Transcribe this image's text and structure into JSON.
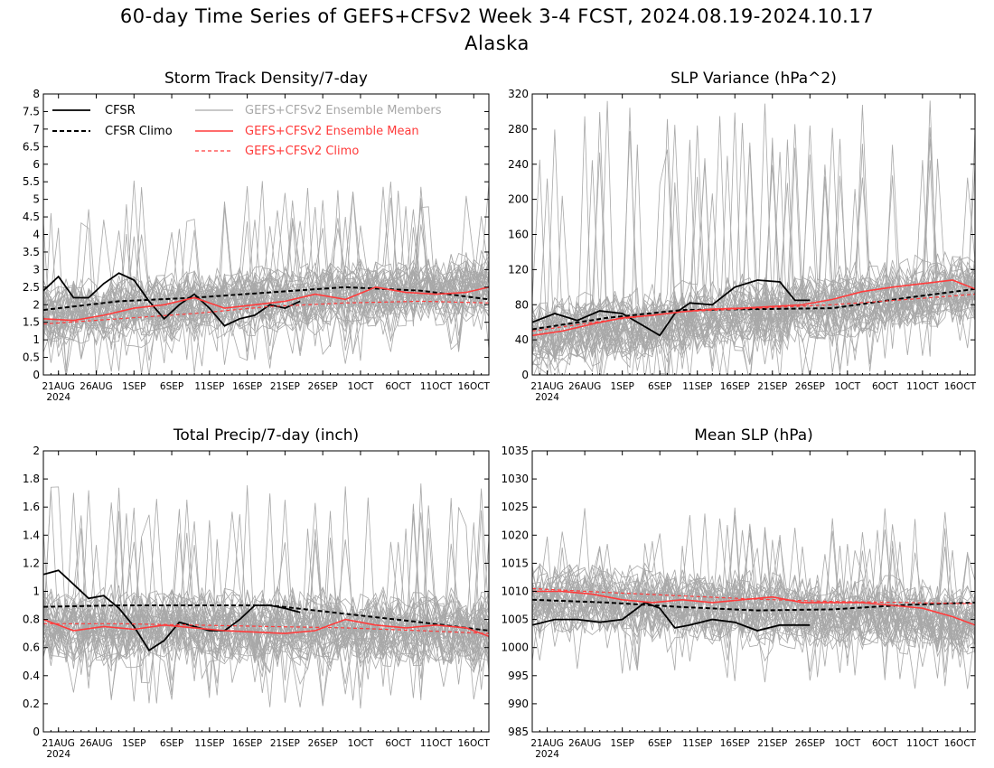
{
  "title": "60-day Time Series of GEFS+CFSv2 Week 3-4 FCST, 2024.08.19-2024.10.17",
  "subtitle": "Alaska",
  "x_axis": {
    "labels": [
      "21AUG",
      "26AUG",
      "1SEP",
      "6SEP",
      "11SEP",
      "16SEP",
      "21SEP",
      "26SEP",
      "1OCT",
      "6OCT",
      "11OCT",
      "16OCT"
    ],
    "year_label": "2024",
    "ndays": 60,
    "first_label_day": 2
  },
  "legend": {
    "cfsr": "CFSR",
    "cfsr_climo": "CFSR Climo",
    "members": "GEFS+CFSv2 Ensemble Members",
    "ens_mean": "GEFS+CFSv2 Ensemble Mean",
    "gefs_climo": "GEFS+CFSv2 Climo"
  },
  "colors": {
    "cfsr": "#000000",
    "members": "#a8a8a8",
    "ens_mean": "#ff3b3b",
    "legend_members_text": "#a8a8a8",
    "legend_red_text": "#ff3b3b"
  },
  "chart_data": [
    {
      "type": "line",
      "title": "Storm Track Density/7-day",
      "ylim": [
        0,
        8
      ],
      "yticks": [
        "0",
        "0.5",
        "1",
        "1.5",
        "2",
        "2.5",
        "3",
        "3.5",
        "4",
        "4.5",
        "5",
        "5.5",
        "6",
        "6.5",
        "7",
        "7.5",
        "8"
      ],
      "members_spread": {
        "count": 40,
        "center_start": 1.7,
        "center_end": 2.5,
        "halfwidth": 0.9,
        "spike_max": 5.6
      },
      "series": [
        {
          "name": "CFSR",
          "style": "cfsr",
          "x": [
            0,
            2,
            4,
            6,
            8,
            10,
            12,
            14,
            16,
            18,
            20,
            22,
            24,
            26,
            28,
            30,
            32,
            34
          ],
          "values": [
            2.4,
            2.8,
            2.2,
            2.2,
            2.6,
            2.9,
            2.7,
            2.1,
            1.6,
            2.0,
            2.3,
            1.9,
            1.4,
            1.6,
            1.7,
            2.0,
            1.9,
            2.1
          ]
        },
        {
          "name": "CFSR Climo",
          "style": "cfsr_climo",
          "x": [
            0,
            10,
            20,
            30,
            40,
            50,
            59
          ],
          "values": [
            1.85,
            2.1,
            2.2,
            2.35,
            2.5,
            2.4,
            2.15
          ]
        },
        {
          "name": "GEFS+CFSv2 Ensemble Mean",
          "style": "ens_mean",
          "x": [
            0,
            4,
            8,
            12,
            16,
            20,
            24,
            28,
            32,
            36,
            40,
            44,
            48,
            52,
            56,
            59
          ],
          "values": [
            1.6,
            1.55,
            1.7,
            1.9,
            2.0,
            2.2,
            1.9,
            2.0,
            2.1,
            2.3,
            2.15,
            2.5,
            2.35,
            2.3,
            2.35,
            2.5
          ]
        },
        {
          "name": "GEFS+CFSv2 Climo",
          "style": "gefs_climo",
          "x": [
            0,
            10,
            20,
            30,
            40,
            50,
            59
          ],
          "values": [
            1.45,
            1.6,
            1.75,
            1.95,
            2.05,
            2.1,
            2.05
          ]
        }
      ]
    },
    {
      "type": "line",
      "title": "SLP Variance (hPa^2)",
      "ylim": [
        0,
        320
      ],
      "yticks": [
        "0",
        "40",
        "80",
        "120",
        "160",
        "200",
        "240",
        "280",
        "320"
      ],
      "members_spread": {
        "count": 40,
        "center_start": 45,
        "center_end": 100,
        "halfwidth": 38,
        "spike_max": 315
      },
      "series": [
        {
          "name": "CFSR",
          "style": "cfsr",
          "x": [
            0,
            3,
            6,
            9,
            12,
            15,
            17,
            19,
            21,
            24,
            27,
            30,
            33,
            35,
            37
          ],
          "values": [
            60,
            70,
            62,
            73,
            70,
            55,
            45,
            70,
            82,
            80,
            100,
            108,
            106,
            85,
            85
          ]
        },
        {
          "name": "CFSR Climo",
          "style": "cfsr_climo",
          "x": [
            0,
            10,
            20,
            30,
            40,
            50,
            59
          ],
          "values": [
            52,
            65,
            74,
            75,
            76,
            88,
            98
          ]
        },
        {
          "name": "GEFS+CFSv2 Ensemble Mean",
          "style": "ens_mean",
          "x": [
            0,
            4,
            8,
            12,
            16,
            20,
            24,
            28,
            32,
            36,
            40,
            44,
            48,
            52,
            56,
            59
          ],
          "values": [
            45,
            50,
            58,
            65,
            68,
            72,
            75,
            76,
            78,
            80,
            86,
            95,
            100,
            104,
            108,
            98
          ]
        },
        {
          "name": "GEFS+CFSv2 Climo",
          "style": "gefs_climo",
          "x": [
            0,
            10,
            20,
            30,
            40,
            50,
            59
          ],
          "values": [
            50,
            62,
            72,
            76,
            80,
            86,
            92
          ]
        }
      ]
    },
    {
      "type": "line",
      "title": "Total Precip/7-day (inch)",
      "ylim": [
        0,
        2
      ],
      "yticks": [
        "0",
        "0.2",
        "0.4",
        "0.6",
        "0.8",
        "1",
        "1.2",
        "1.4",
        "1.6",
        "1.8",
        "2"
      ],
      "members_spread": {
        "count": 40,
        "center_start": 0.77,
        "center_end": 0.72,
        "halfwidth": 0.26,
        "spike_max": 1.78
      },
      "series": [
        {
          "name": "CFSR",
          "style": "cfsr",
          "x": [
            0,
            2,
            4,
            6,
            8,
            10,
            12,
            14,
            16,
            18,
            20,
            22,
            24,
            26,
            28,
            30,
            32,
            34
          ],
          "values": [
            1.12,
            1.15,
            1.05,
            0.95,
            0.97,
            0.88,
            0.75,
            0.58,
            0.65,
            0.78,
            0.75,
            0.72,
            0.72,
            0.8,
            0.9,
            0.9,
            0.88,
            0.85
          ]
        },
        {
          "name": "CFSR Climo",
          "style": "cfsr_climo",
          "x": [
            0,
            10,
            20,
            30,
            40,
            50,
            59
          ],
          "values": [
            0.89,
            0.9,
            0.9,
            0.9,
            0.84,
            0.78,
            0.72
          ]
        },
        {
          "name": "GEFS+CFSv2 Ensemble Mean",
          "style": "ens_mean",
          "x": [
            0,
            4,
            8,
            12,
            16,
            20,
            24,
            28,
            32,
            36,
            40,
            44,
            48,
            52,
            56,
            59
          ],
          "values": [
            0.8,
            0.72,
            0.75,
            0.73,
            0.76,
            0.74,
            0.72,
            0.71,
            0.7,
            0.72,
            0.8,
            0.76,
            0.74,
            0.76,
            0.74,
            0.68
          ]
        },
        {
          "name": "GEFS+CFSv2 Climo",
          "style": "gefs_climo",
          "x": [
            0,
            10,
            20,
            30,
            40,
            50,
            59
          ],
          "values": [
            0.77,
            0.77,
            0.76,
            0.75,
            0.74,
            0.72,
            0.7
          ]
        }
      ]
    },
    {
      "type": "line",
      "title": "Mean SLP (hPa)",
      "ylim": [
        985,
        1035
      ],
      "yticks": [
        "985",
        "990",
        "995",
        "1000",
        "1005",
        "1010",
        "1015",
        "1020",
        "1025",
        "1030",
        "1035"
      ],
      "members_spread": {
        "count": 40,
        "center_start": 1009,
        "center_end": 1005,
        "halfwidth": 6,
        "spike_max": 1025
      },
      "series": [
        {
          "name": "CFSR",
          "style": "cfsr",
          "x": [
            0,
            3,
            6,
            9,
            12,
            15,
            17,
            19,
            21,
            24,
            27,
            30,
            33,
            35,
            37
          ],
          "values": [
            1004,
            1005,
            1005,
            1004.5,
            1005,
            1008,
            1007,
            1003.5,
            1004,
            1005,
            1004.5,
            1003,
            1004,
            1004,
            1004
          ]
        },
        {
          "name": "CFSR Climo",
          "style": "cfsr_climo",
          "x": [
            0,
            10,
            20,
            30,
            40,
            50,
            59
          ],
          "values": [
            1008.5,
            1008,
            1007.2,
            1006.6,
            1006.8,
            1007.6,
            1008
          ]
        },
        {
          "name": "GEFS+CFSv2 Ensemble Mean",
          "style": "ens_mean",
          "x": [
            0,
            4,
            8,
            12,
            16,
            20,
            24,
            28,
            32,
            36,
            40,
            44,
            48,
            52,
            56,
            59
          ],
          "values": [
            1010,
            1010,
            1009.5,
            1008.5,
            1008,
            1008.5,
            1008,
            1008.5,
            1009,
            1008,
            1008,
            1008,
            1007.5,
            1007,
            1005.5,
            1004
          ]
        },
        {
          "name": "GEFS+CFSv2 Climo",
          "style": "gefs_climo",
          "x": [
            0,
            10,
            20,
            30,
            40,
            50,
            59
          ],
          "values": [
            1010.5,
            1009.8,
            1009.2,
            1008.6,
            1008.2,
            1008,
            1007.8
          ]
        }
      ]
    }
  ]
}
